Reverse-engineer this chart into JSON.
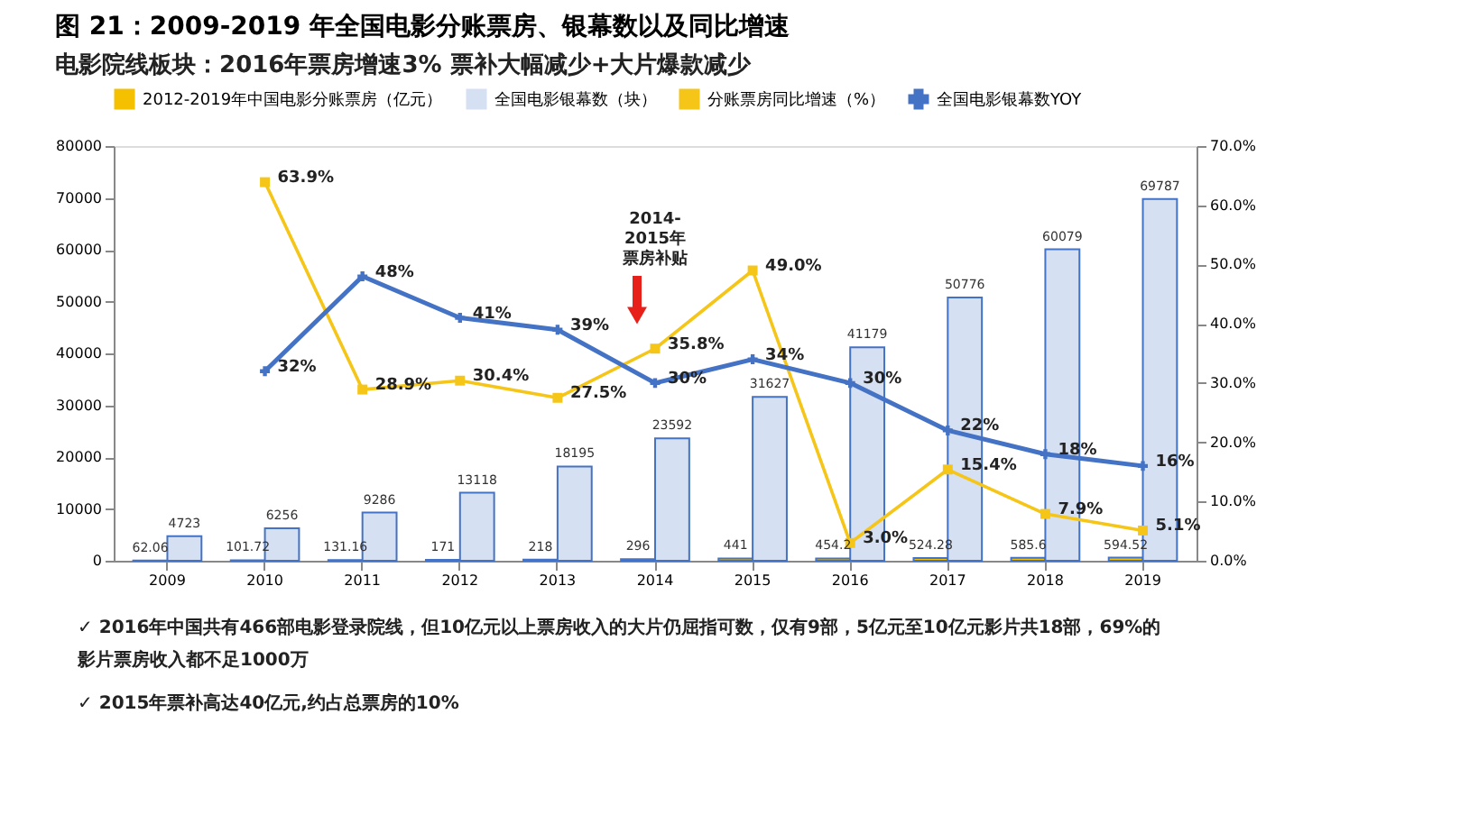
{
  "chart_data": {
    "type": "bar",
    "title": "图 21：2009-2019 年全国电影分账票房、银幕数以及同比增速",
    "subtitle": "电影院线板块：2016年票房增速3% 票补大幅减少+大片爆款减少",
    "categories": [
      "2009",
      "2010",
      "2011",
      "2012",
      "2013",
      "2014",
      "2015",
      "2016",
      "2017",
      "2018",
      "2019"
    ],
    "series": [
      {
        "name": "2012-2019年中国电影分账票房（亿元）",
        "color": "#f5c000",
        "values": [
          62.06,
          101.72,
          131.16,
          171,
          218,
          296,
          441,
          454.25,
          524.28,
          585.6,
          594.52
        ],
        "value_labels": [
          "62.06",
          "101.72",
          "131.16",
          "171",
          "218",
          "296",
          "441",
          "454.2",
          "524.28",
          "585.6",
          "594.52"
        ]
      },
      {
        "name": "全国电影银幕数（块）",
        "color": "#d6e0f3",
        "values": [
          4723,
          6256,
          9286,
          13118,
          18195,
          23592,
          31627,
          41179,
          50776,
          60079,
          69787
        ],
        "value_labels": [
          "4723",
          "6256",
          "9286",
          "13118",
          "18195",
          "23592",
          "31627",
          "41179",
          "50776",
          "60079",
          "69787"
        ]
      },
      {
        "name": "分账票房同比增速（%）",
        "type": "line",
        "axis": "y2",
        "color": "#f5c518",
        "marker": "square",
        "values": [
          null,
          63.9,
          28.9,
          30.4,
          27.5,
          35.8,
          49.0,
          3.0,
          15.4,
          7.9,
          5.1
        ],
        "value_labels": [
          null,
          "63.9%",
          "28.9%",
          "30.4%",
          "27.5%",
          "35.8%",
          "49.0%",
          "3.0%",
          "15.4%",
          "7.9%",
          "5.1%"
        ]
      },
      {
        "name": "全国电影银幕数YOY",
        "type": "line",
        "axis": "y2",
        "color": "#4472c4",
        "marker": "cross",
        "values": [
          null,
          32,
          48,
          41,
          39,
          30,
          34,
          30,
          22,
          18,
          16
        ],
        "value_labels": [
          null,
          "32%",
          "48%",
          "41%",
          "39%",
          "30%",
          "34%",
          "30%",
          "22%",
          "18%",
          "16%"
        ]
      }
    ],
    "ylim": [
      0,
      80000
    ],
    "yticks": [
      0,
      10000,
      20000,
      30000,
      40000,
      50000,
      60000,
      70000,
      80000
    ],
    "y2lim": [
      0,
      70
    ],
    "y2ticks": [
      {
        "value": 0,
        "label": "0.0%"
      },
      {
        "value": 10,
        "label": "10.0%"
      },
      {
        "value": 20,
        "label": "20.0%"
      },
      {
        "value": 30,
        "label": "30.0%"
      },
      {
        "value": 40,
        "label": "40.0%"
      },
      {
        "value": 50,
        "label": "50.0%"
      },
      {
        "value": 60,
        "label": "60.0%"
      },
      {
        "value": 70,
        "label": "70.0%"
      }
    ],
    "legend": "top",
    "grid": false,
    "annotations": [
      "2014-2015年票房补贴",
      "✓ 2016年中国共有466部电影登录院线，但10亿元以上票房收入的大片仍屈指可数，仅有9部，5亿元至10亿元影片共18部，69%的影片票房收入都不足1000万",
      "✓ 2015年票补高达40亿元,约占总票房的10%"
    ]
  }
}
